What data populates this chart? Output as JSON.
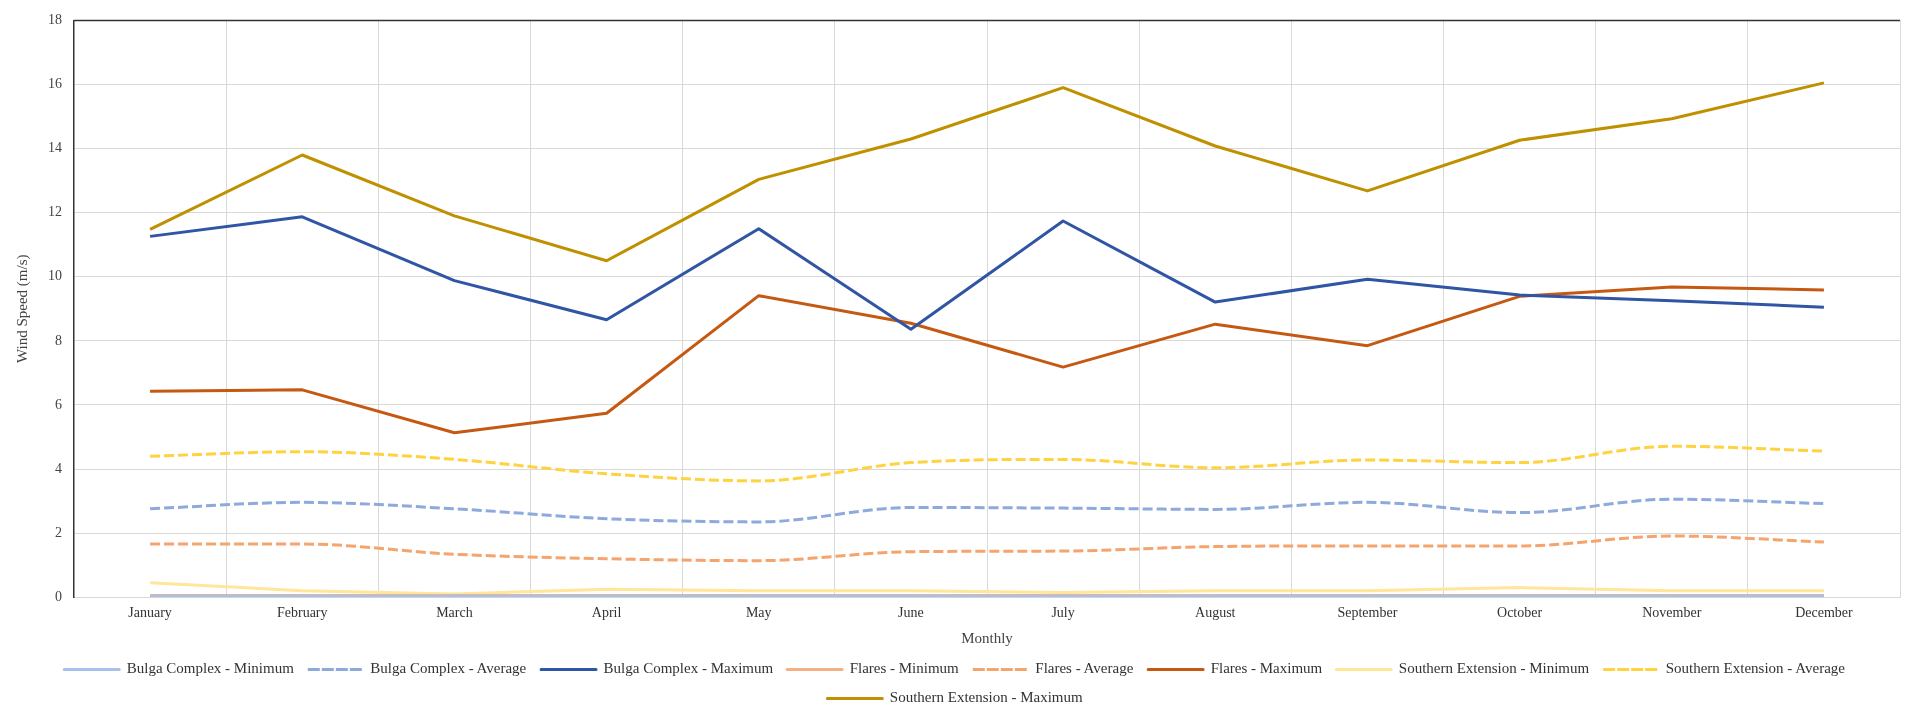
{
  "chart_data": {
    "type": "line",
    "xlabel": "Monthly",
    "ylabel": "Wind Speed (m/s)",
    "categories": [
      "January",
      "February",
      "March",
      "April",
      "May",
      "June",
      "July",
      "August",
      "September",
      "October",
      "November",
      "December"
    ],
    "ylim": [
      0,
      18
    ],
    "yticks": [
      0,
      2,
      4,
      6,
      8,
      10,
      12,
      14,
      16,
      18
    ],
    "grid": true,
    "legend": "bottom",
    "marker": "none",
    "series": [
      {
        "name": "Bulga Complex - Minimum",
        "color": "#a9c0ea",
        "line_style": "solid",
        "values": [
          0.03,
          0.03,
          0.03,
          0.03,
          0.03,
          0.03,
          0.03,
          0.03,
          0.03,
          0.03,
          0.03,
          0.03
        ]
      },
      {
        "name": "Bulga Complex - Average",
        "color": "#8ea9db",
        "line_style": "dashed",
        "values": [
          2.76,
          2.96,
          2.76,
          2.45,
          2.35,
          2.8,
          2.78,
          2.74,
          2.96,
          2.64,
          3.06,
          2.92
        ]
      },
      {
        "name": "Bulga Complex - Maximum",
        "color": "#2f55a4",
        "line_style": "solid",
        "values": [
          11.26,
          11.87,
          9.88,
          8.66,
          11.5,
          8.36,
          11.74,
          9.21,
          9.92,
          9.43,
          9.25,
          9.05
        ]
      },
      {
        "name": "Flares - Minimum",
        "color": "#f4b183",
        "line_style": "solid",
        "values": [
          0.05,
          0.05,
          0.05,
          0.05,
          0.05,
          0.05,
          0.05,
          0.05,
          0.05,
          0.05,
          0.05,
          0.05
        ]
      },
      {
        "name": "Flares - Average",
        "color": "#f4a46c",
        "line_style": "dashed",
        "values": [
          1.66,
          1.66,
          1.34,
          1.2,
          1.14,
          1.42,
          1.44,
          1.58,
          1.6,
          1.6,
          1.91,
          1.72
        ]
      },
      {
        "name": "Flares - Maximum",
        "color": "#c65911",
        "line_style": "solid",
        "values": [
          6.43,
          6.47,
          5.13,
          5.74,
          9.41,
          8.55,
          7.18,
          8.52,
          7.85,
          9.39,
          9.68,
          9.59
        ]
      },
      {
        "name": "Southern Extension - Minimum",
        "color": "#ffe699",
        "line_style": "solid",
        "values": [
          0.45,
          0.2,
          0.1,
          0.25,
          0.2,
          0.2,
          0.15,
          0.2,
          0.2,
          0.3,
          0.2,
          0.2
        ]
      },
      {
        "name": "Southern Extension - Average",
        "color": "#ffd23f",
        "line_style": "dashed",
        "values": [
          4.4,
          4.54,
          4.3,
          3.85,
          3.63,
          4.2,
          4.3,
          4.04,
          4.28,
          4.2,
          4.71,
          4.56
        ]
      },
      {
        "name": "Southern Extension - Maximum",
        "color": "#bf9000",
        "line_style": "solid",
        "values": [
          11.48,
          13.8,
          11.9,
          10.5,
          13.04,
          14.3,
          15.9,
          14.08,
          12.68,
          14.26,
          14.93,
          16.05
        ]
      }
    ]
  }
}
